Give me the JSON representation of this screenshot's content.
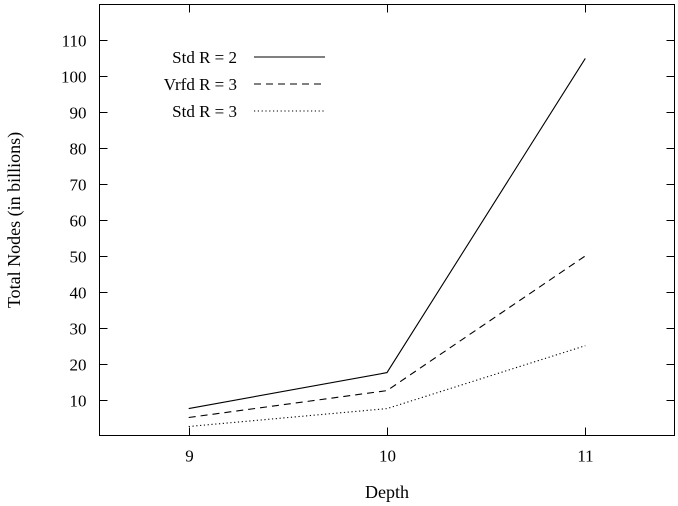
{
  "chart_data": {
    "type": "line",
    "xlabel": "Depth",
    "ylabel": "Total Nodes (in billions)",
    "x": [
      9,
      10,
      11
    ],
    "xlim": [
      8.55,
      11.45
    ],
    "ylim": [
      0,
      120
    ],
    "x_ticks": [
      9,
      10,
      11
    ],
    "y_ticks": [
      10,
      20,
      30,
      40,
      50,
      60,
      70,
      80,
      90,
      100,
      110
    ],
    "grid": false,
    "legend_position": "top-left",
    "series": [
      {
        "name": "Std R = 2",
        "style": "solid",
        "values": [
          7.5,
          17.5,
          105
        ]
      },
      {
        "name": "Vrfd R = 3",
        "style": "dashed",
        "values": [
          5,
          12.5,
          50
        ]
      },
      {
        "name": "Std R = 3",
        "style": "dotted",
        "values": [
          2.5,
          7.5,
          25
        ]
      }
    ]
  }
}
